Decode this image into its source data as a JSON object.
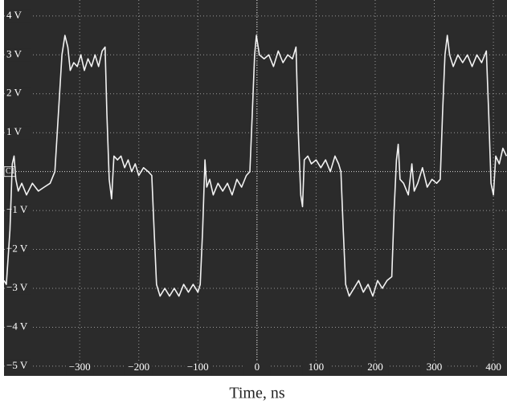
{
  "chart_data": {
    "type": "line",
    "xlabel": "Time, ns",
    "channel_label": "C1",
    "color": "#f2f2f2",
    "background": "#2b2b2b",
    "grid": true,
    "xlim": [
      -428,
      423
    ],
    "ylim": [
      -5.25,
      4.41
    ],
    "xticks": [
      {
        "value": -300,
        "label": "−300"
      },
      {
        "value": -200,
        "label": "−200"
      },
      {
        "value": -100,
        "label": "−100"
      },
      0,
      100,
      200,
      300,
      400
    ],
    "yticks": [
      {
        "value": -5,
        "label": "−5 V"
      },
      {
        "value": -4,
        "label": "−4 V"
      },
      {
        "value": -3,
        "label": "−3 V"
      },
      {
        "value": -2,
        "label": "−2 V"
      },
      {
        "value": -1,
        "label": "−1 V"
      },
      {
        "value": 1,
        "label": "1 V"
      },
      {
        "value": 2,
        "label": "2 V"
      },
      {
        "value": 3,
        "label": "3 V"
      },
      {
        "value": 4,
        "label": "4 V"
      }
    ],
    "x": [
      -428,
      -424,
      -418,
      -414,
      -411,
      -408,
      -404,
      -398,
      -390,
      -380,
      -370,
      -360,
      -350,
      -342,
      -336,
      -330,
      -325,
      -320,
      -316,
      -310,
      -304,
      -298,
      -292,
      -286,
      -280,
      -274,
      -268,
      -262,
      -257,
      -254,
      -250,
      -246,
      -242,
      -236,
      -230,
      -224,
      -218,
      -212,
      -206,
      -200,
      -192,
      -184,
      -178,
      -174,
      -170,
      -164,
      -156,
      -148,
      -140,
      -132,
      -124,
      -116,
      -108,
      -100,
      -96,
      -92,
      -88,
      -85,
      -80,
      -74,
      -66,
      -58,
      -50,
      -42,
      -34,
      -26,
      -18,
      -12,
      -8,
      -4,
      -1,
      4,
      12,
      20,
      28,
      36,
      44,
      52,
      60,
      66,
      70,
      74,
      77,
      80,
      86,
      92,
      100,
      108,
      116,
      124,
      132,
      138,
      142,
      146,
      150,
      156,
      164,
      172,
      180,
      188,
      196,
      204,
      212,
      220,
      228,
      232,
      236,
      239,
      242,
      248,
      256,
      262,
      266,
      272,
      280,
      288,
      296,
      304,
      310,
      314,
      318,
      322,
      326,
      332,
      340,
      348,
      356,
      364,
      372,
      380,
      388,
      392,
      396,
      400,
      404,
      410,
      416,
      422
    ],
    "values": [
      -2.8,
      -2.9,
      -1.5,
      0.2,
      0.4,
      -0.2,
      -0.5,
      -0.3,
      -0.6,
      -0.3,
      -0.5,
      -0.4,
      -0.3,
      0.0,
      1.5,
      3.0,
      3.5,
      3.2,
      2.6,
      2.8,
      2.7,
      3.0,
      2.6,
      2.9,
      2.7,
      3.0,
      2.7,
      3.1,
      3.2,
      1.5,
      -0.2,
      -0.7,
      0.4,
      0.3,
      0.4,
      0.1,
      0.3,
      0.0,
      0.2,
      -0.1,
      0.1,
      0.0,
      -0.1,
      -1.5,
      -2.9,
      -3.2,
      -3.0,
      -3.2,
      -3.0,
      -3.2,
      -2.9,
      -3.1,
      -2.9,
      -3.1,
      -2.9,
      -1.5,
      0.3,
      -0.4,
      -0.2,
      -0.6,
      -0.3,
      -0.5,
      -0.3,
      -0.6,
      -0.2,
      -0.4,
      -0.1,
      0.0,
      1.5,
      3.0,
      3.5,
      3.0,
      2.9,
      3.0,
      2.7,
      3.1,
      2.8,
      3.0,
      2.9,
      3.2,
      1.0,
      -0.6,
      -0.9,
      0.3,
      0.4,
      0.2,
      0.3,
      0.1,
      0.3,
      0.0,
      0.4,
      0.2,
      0.0,
      -1.5,
      -2.9,
      -3.2,
      -3.0,
      -2.8,
      -3.1,
      -2.9,
      -3.2,
      -2.8,
      -3.0,
      -2.8,
      -2.7,
      -1.0,
      0.3,
      0.7,
      -0.2,
      -0.3,
      -0.6,
      0.2,
      -0.5,
      -0.3,
      0.1,
      -0.4,
      -0.2,
      -0.3,
      -0.2,
      1.5,
      3.0,
      3.5,
      3.0,
      2.7,
      3.0,
      2.8,
      3.0,
      2.7,
      3.0,
      2.8,
      3.1,
      1.5,
      -0.3,
      -0.6,
      0.4,
      0.2,
      0.6,
      0.4
    ]
  }
}
